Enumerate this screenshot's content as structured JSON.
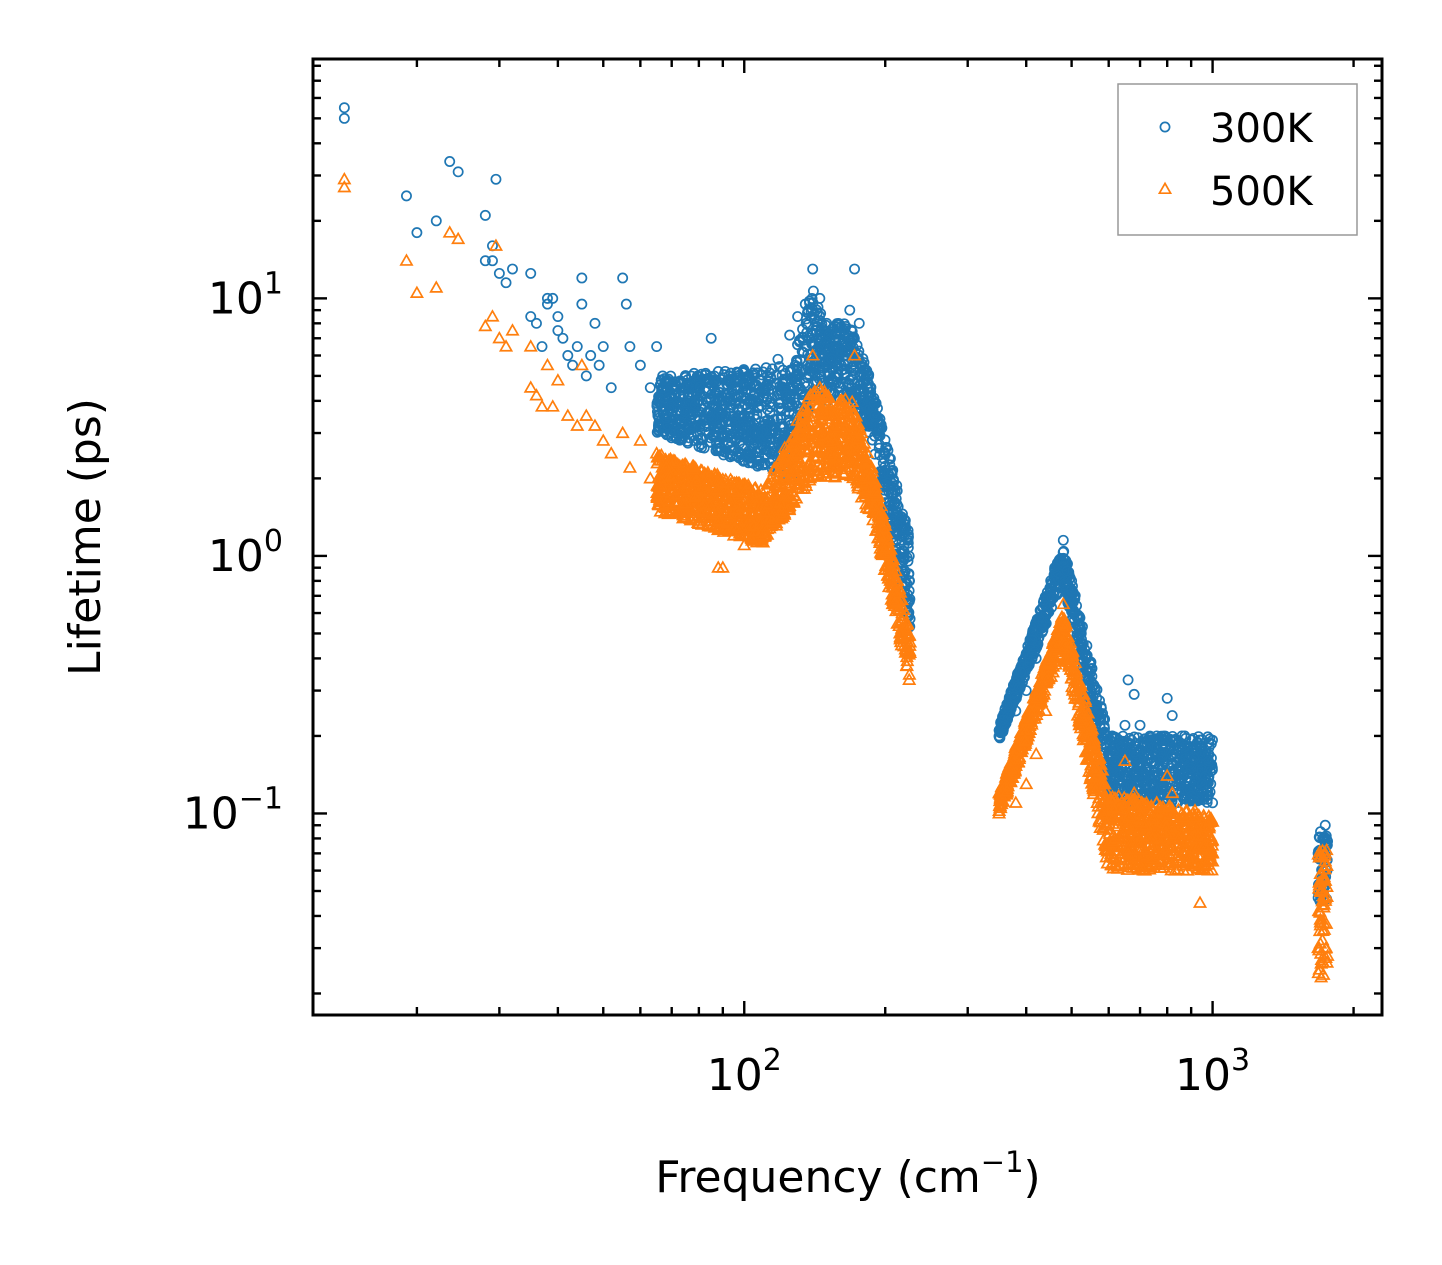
{
  "chart_data": {
    "type": "scatter",
    "title": "",
    "xlabel": "Frequency (cm",
    "xlabel_sup": "−1",
    "xlabel_end": ")",
    "ylabel": "Lifetime (ps)",
    "xscale": "log",
    "yscale": "log",
    "xlim": [
      12,
      2300
    ],
    "ylim": [
      0.0165,
      85
    ],
    "x_ticks": [
      {
        "value": 100,
        "base": "10",
        "exp": "2"
      },
      {
        "value": 1000,
        "base": "10",
        "exp": "3"
      }
    ],
    "y_ticks": [
      {
        "value": 0.1,
        "base": "10",
        "exp": "−1"
      },
      {
        "value": 1,
        "base": "10",
        "exp": "0"
      },
      {
        "value": 10,
        "base": "10",
        "exp": "1"
      }
    ],
    "legend_position": "top-right",
    "series": [
      {
        "name": "300K",
        "color": "#1f77b4",
        "marker": "circle",
        "points": [
          [
            14,
            55
          ],
          [
            14,
            50
          ],
          [
            19,
            25
          ],
          [
            20,
            18
          ],
          [
            22,
            20
          ],
          [
            23.5,
            34
          ],
          [
            24.5,
            31
          ],
          [
            28,
            14
          ],
          [
            28,
            21
          ],
          [
            29,
            16
          ],
          [
            29,
            14
          ],
          [
            29.5,
            29
          ],
          [
            30,
            12.5
          ],
          [
            31,
            11.5
          ],
          [
            32,
            13
          ],
          [
            35,
            12.5
          ],
          [
            35,
            8.5
          ],
          [
            36,
            8
          ],
          [
            37,
            6.5
          ],
          [
            38,
            10
          ],
          [
            38,
            9.5
          ],
          [
            39,
            10
          ],
          [
            40,
            8.5
          ],
          [
            40,
            7.5
          ],
          [
            41,
            7
          ],
          [
            42,
            6
          ],
          [
            43,
            5.5
          ],
          [
            44,
            6.5
          ],
          [
            45,
            12
          ],
          [
            45,
            9.5
          ],
          [
            46,
            5
          ],
          [
            47,
            6
          ],
          [
            48,
            8
          ],
          [
            49,
            5.5
          ],
          [
            50,
            6.5
          ],
          [
            52,
            4.5
          ],
          [
            55,
            12
          ],
          [
            56,
            9.5
          ],
          [
            57,
            6.5
          ],
          [
            60,
            5.5
          ],
          [
            63,
            4.5
          ],
          [
            65,
            6.5
          ],
          [
            68,
            4.8
          ],
          [
            72,
            4
          ],
          [
            76,
            4.2
          ],
          [
            80,
            4
          ],
          [
            85,
            7
          ],
          [
            88,
            5.2
          ],
          [
            92,
            4.8
          ],
          [
            95,
            3.5
          ],
          [
            98,
            3
          ],
          [
            105,
            3.5
          ],
          [
            110,
            4.5
          ],
          [
            112,
            5
          ],
          [
            118,
            5.8
          ],
          [
            125,
            7.2
          ],
          [
            130,
            8.5
          ],
          [
            135,
            9.5
          ],
          [
            140,
            13
          ],
          [
            145,
            10
          ],
          [
            150,
            8
          ],
          [
            160,
            7.5
          ],
          [
            168,
            9
          ],
          [
            172,
            13
          ],
          [
            176,
            8
          ],
          [
            180,
            5
          ],
          [
            190,
            3.5
          ],
          [
            200,
            2.5
          ],
          [
            210,
            1.8
          ],
          [
            220,
            1.2
          ],
          [
            225,
            0.8
          ],
          [
            350,
            0.2
          ],
          [
            360,
            0.22
          ],
          [
            380,
            0.25
          ],
          [
            400,
            0.3
          ],
          [
            420,
            0.4
          ],
          [
            440,
            0.6
          ],
          [
            460,
            0.9
          ],
          [
            480,
            1.15
          ],
          [
            500,
            0.8
          ],
          [
            520,
            0.4
          ],
          [
            550,
            0.3
          ],
          [
            580,
            0.2
          ],
          [
            620,
            0.16
          ],
          [
            650,
            0.22
          ],
          [
            660,
            0.33
          ],
          [
            680,
            0.29
          ],
          [
            700,
            0.22
          ],
          [
            720,
            0.18
          ],
          [
            760,
            0.2
          ],
          [
            800,
            0.28
          ],
          [
            820,
            0.24
          ],
          [
            860,
            0.2
          ],
          [
            900,
            0.15
          ],
          [
            950,
            0.13
          ],
          [
            980,
            0.16
          ],
          [
            1000,
            0.11
          ],
          [
            1680,
            0.07
          ],
          [
            1700,
            0.085
          ],
          [
            1720,
            0.06
          ],
          [
            1740,
            0.09
          ],
          [
            1760,
            0.078
          ]
        ],
        "bands": [
          {
            "x": [
              65,
              128
            ],
            "ylo": [
              3.0,
              2.0
            ],
            "yhi": [
              5.0,
              5.5
            ]
          },
          {
            "x": [
              128,
              140
            ],
            "ylo": [
              2.5,
              4.0
            ],
            "yhi": [
              6.0,
              11.0
            ]
          },
          {
            "x": [
              140,
              150
            ],
            "ylo": [
              4.0,
              4.0
            ],
            "yhi": [
              11.0,
              8.0
            ]
          },
          {
            "x": [
              150,
              168
            ],
            "ylo": [
              4.0,
              4.0
            ],
            "yhi": [
              8.0,
              8.0
            ]
          },
          {
            "x": [
              168,
              185
            ],
            "ylo": [
              4.0,
              3.0
            ],
            "yhi": [
              8.0,
              5.0
            ]
          },
          {
            "x": [
              185,
              226
            ],
            "ylo": [
              3.0,
              0.5
            ],
            "yhi": [
              5.0,
              1.2
            ]
          },
          {
            "x": [
              350,
              480
            ],
            "ylo": [
              0.19,
              0.8
            ],
            "yhi": [
              0.22,
              1.1
            ]
          },
          {
            "x": [
              480,
              600
            ],
            "ylo": [
              0.8,
              0.11
            ],
            "yhi": [
              1.1,
              0.2
            ]
          },
          {
            "x": [
              600,
              1000
            ],
            "ylo": [
              0.11,
              0.11
            ],
            "yhi": [
              0.2,
              0.2
            ]
          },
          {
            "x": [
              1680,
              1760
            ],
            "ylo": [
              0.045,
              0.045
            ],
            "yhi": [
              0.085,
              0.085
            ]
          }
        ]
      },
      {
        "name": "500K",
        "color": "#ff7f0e",
        "marker": "triangle",
        "points": [
          [
            14,
            29
          ],
          [
            14,
            27
          ],
          [
            19,
            14
          ],
          [
            20,
            10.5
          ],
          [
            22,
            11
          ],
          [
            23.5,
            18
          ],
          [
            24.5,
            17
          ],
          [
            28,
            7.8
          ],
          [
            29,
            8.5
          ],
          [
            29.5,
            16
          ],
          [
            30,
            7
          ],
          [
            31,
            6.5
          ],
          [
            32,
            7.5
          ],
          [
            35,
            4.5
          ],
          [
            35,
            6.5
          ],
          [
            36,
            4.2
          ],
          [
            37,
            3.8
          ],
          [
            38,
            5.5
          ],
          [
            39,
            3.8
          ],
          [
            40,
            4.8
          ],
          [
            42,
            3.5
          ],
          [
            44,
            3.2
          ],
          [
            45,
            5.5
          ],
          [
            46,
            3.5
          ],
          [
            48,
            3.2
          ],
          [
            50,
            2.8
          ],
          [
            52,
            2.5
          ],
          [
            55,
            3
          ],
          [
            57,
            2.2
          ],
          [
            60,
            2.8
          ],
          [
            63,
            2
          ],
          [
            65,
            2.5
          ],
          [
            70,
            1.8
          ],
          [
            75,
            1.6
          ],
          [
            80,
            1.5
          ],
          [
            85,
            1.3
          ],
          [
            88,
            0.9
          ],
          [
            90,
            0.9
          ],
          [
            95,
            1.2
          ],
          [
            100,
            1.1
          ],
          [
            110,
            1.3
          ],
          [
            120,
            1.5
          ],
          [
            125,
            1.7
          ],
          [
            130,
            2.5
          ],
          [
            135,
            3.5
          ],
          [
            140,
            6
          ],
          [
            145,
            4.5
          ],
          [
            155,
            3.5
          ],
          [
            165,
            3.8
          ],
          [
            172,
            6
          ],
          [
            178,
            3
          ],
          [
            185,
            2
          ],
          [
            195,
            1.2
          ],
          [
            205,
            0.8
          ],
          [
            215,
            0.5
          ],
          [
            225,
            0.33
          ],
          [
            350,
            0.1
          ],
          [
            380,
            0.11
          ],
          [
            400,
            0.13
          ],
          [
            420,
            0.17
          ],
          [
            440,
            0.25
          ],
          [
            460,
            0.45
          ],
          [
            480,
            0.65
          ],
          [
            500,
            0.4
          ],
          [
            520,
            0.23
          ],
          [
            550,
            0.15
          ],
          [
            580,
            0.1
          ],
          [
            620,
            0.08
          ],
          [
            650,
            0.16
          ],
          [
            680,
            0.12
          ],
          [
            700,
            0.1
          ],
          [
            720,
            0.09
          ],
          [
            760,
            0.11
          ],
          [
            800,
            0.14
          ],
          [
            820,
            0.12
          ],
          [
            860,
            0.1
          ],
          [
            900,
            0.08
          ],
          [
            940,
            0.045
          ],
          [
            960,
            0.075
          ],
          [
            1000,
            0.07
          ],
          [
            1680,
            0.03
          ],
          [
            1700,
            0.05
          ],
          [
            1720,
            0.035
          ],
          [
            1740,
            0.07
          ],
          [
            1760,
            0.028
          ]
        ],
        "bands": [
          {
            "x": [
              65,
              110
            ],
            "ylo": [
              1.5,
              1.1
            ],
            "yhi": [
              2.5,
              1.8
            ]
          },
          {
            "x": [
              110,
              140
            ],
            "ylo": [
              1.1,
              2.0
            ],
            "yhi": [
              1.8,
              4.5
            ]
          },
          {
            "x": [
              140,
              170
            ],
            "ylo": [
              2.0,
              2.0
            ],
            "yhi": [
              4.5,
              4.0
            ]
          },
          {
            "x": [
              170,
              190
            ],
            "ylo": [
              2.0,
              1.3
            ],
            "yhi": [
              4.0,
              2.0
            ]
          },
          {
            "x": [
              190,
              226
            ],
            "ylo": [
              1.3,
              0.32
            ],
            "yhi": [
              2.0,
              0.5
            ]
          },
          {
            "x": [
              350,
              480
            ],
            "ylo": [
              0.1,
              0.45
            ],
            "yhi": [
              0.12,
              0.6
            ]
          },
          {
            "x": [
              480,
              600
            ],
            "ylo": [
              0.45,
              0.06
            ],
            "yhi": [
              0.6,
              0.12
            ]
          },
          {
            "x": [
              600,
              1000
            ],
            "ylo": [
              0.06,
              0.06
            ],
            "yhi": [
              0.12,
              0.1
            ]
          },
          {
            "x": [
              1680,
              1760
            ],
            "ylo": [
              0.022,
              0.022
            ],
            "yhi": [
              0.075,
              0.075
            ]
          }
        ]
      }
    ]
  }
}
